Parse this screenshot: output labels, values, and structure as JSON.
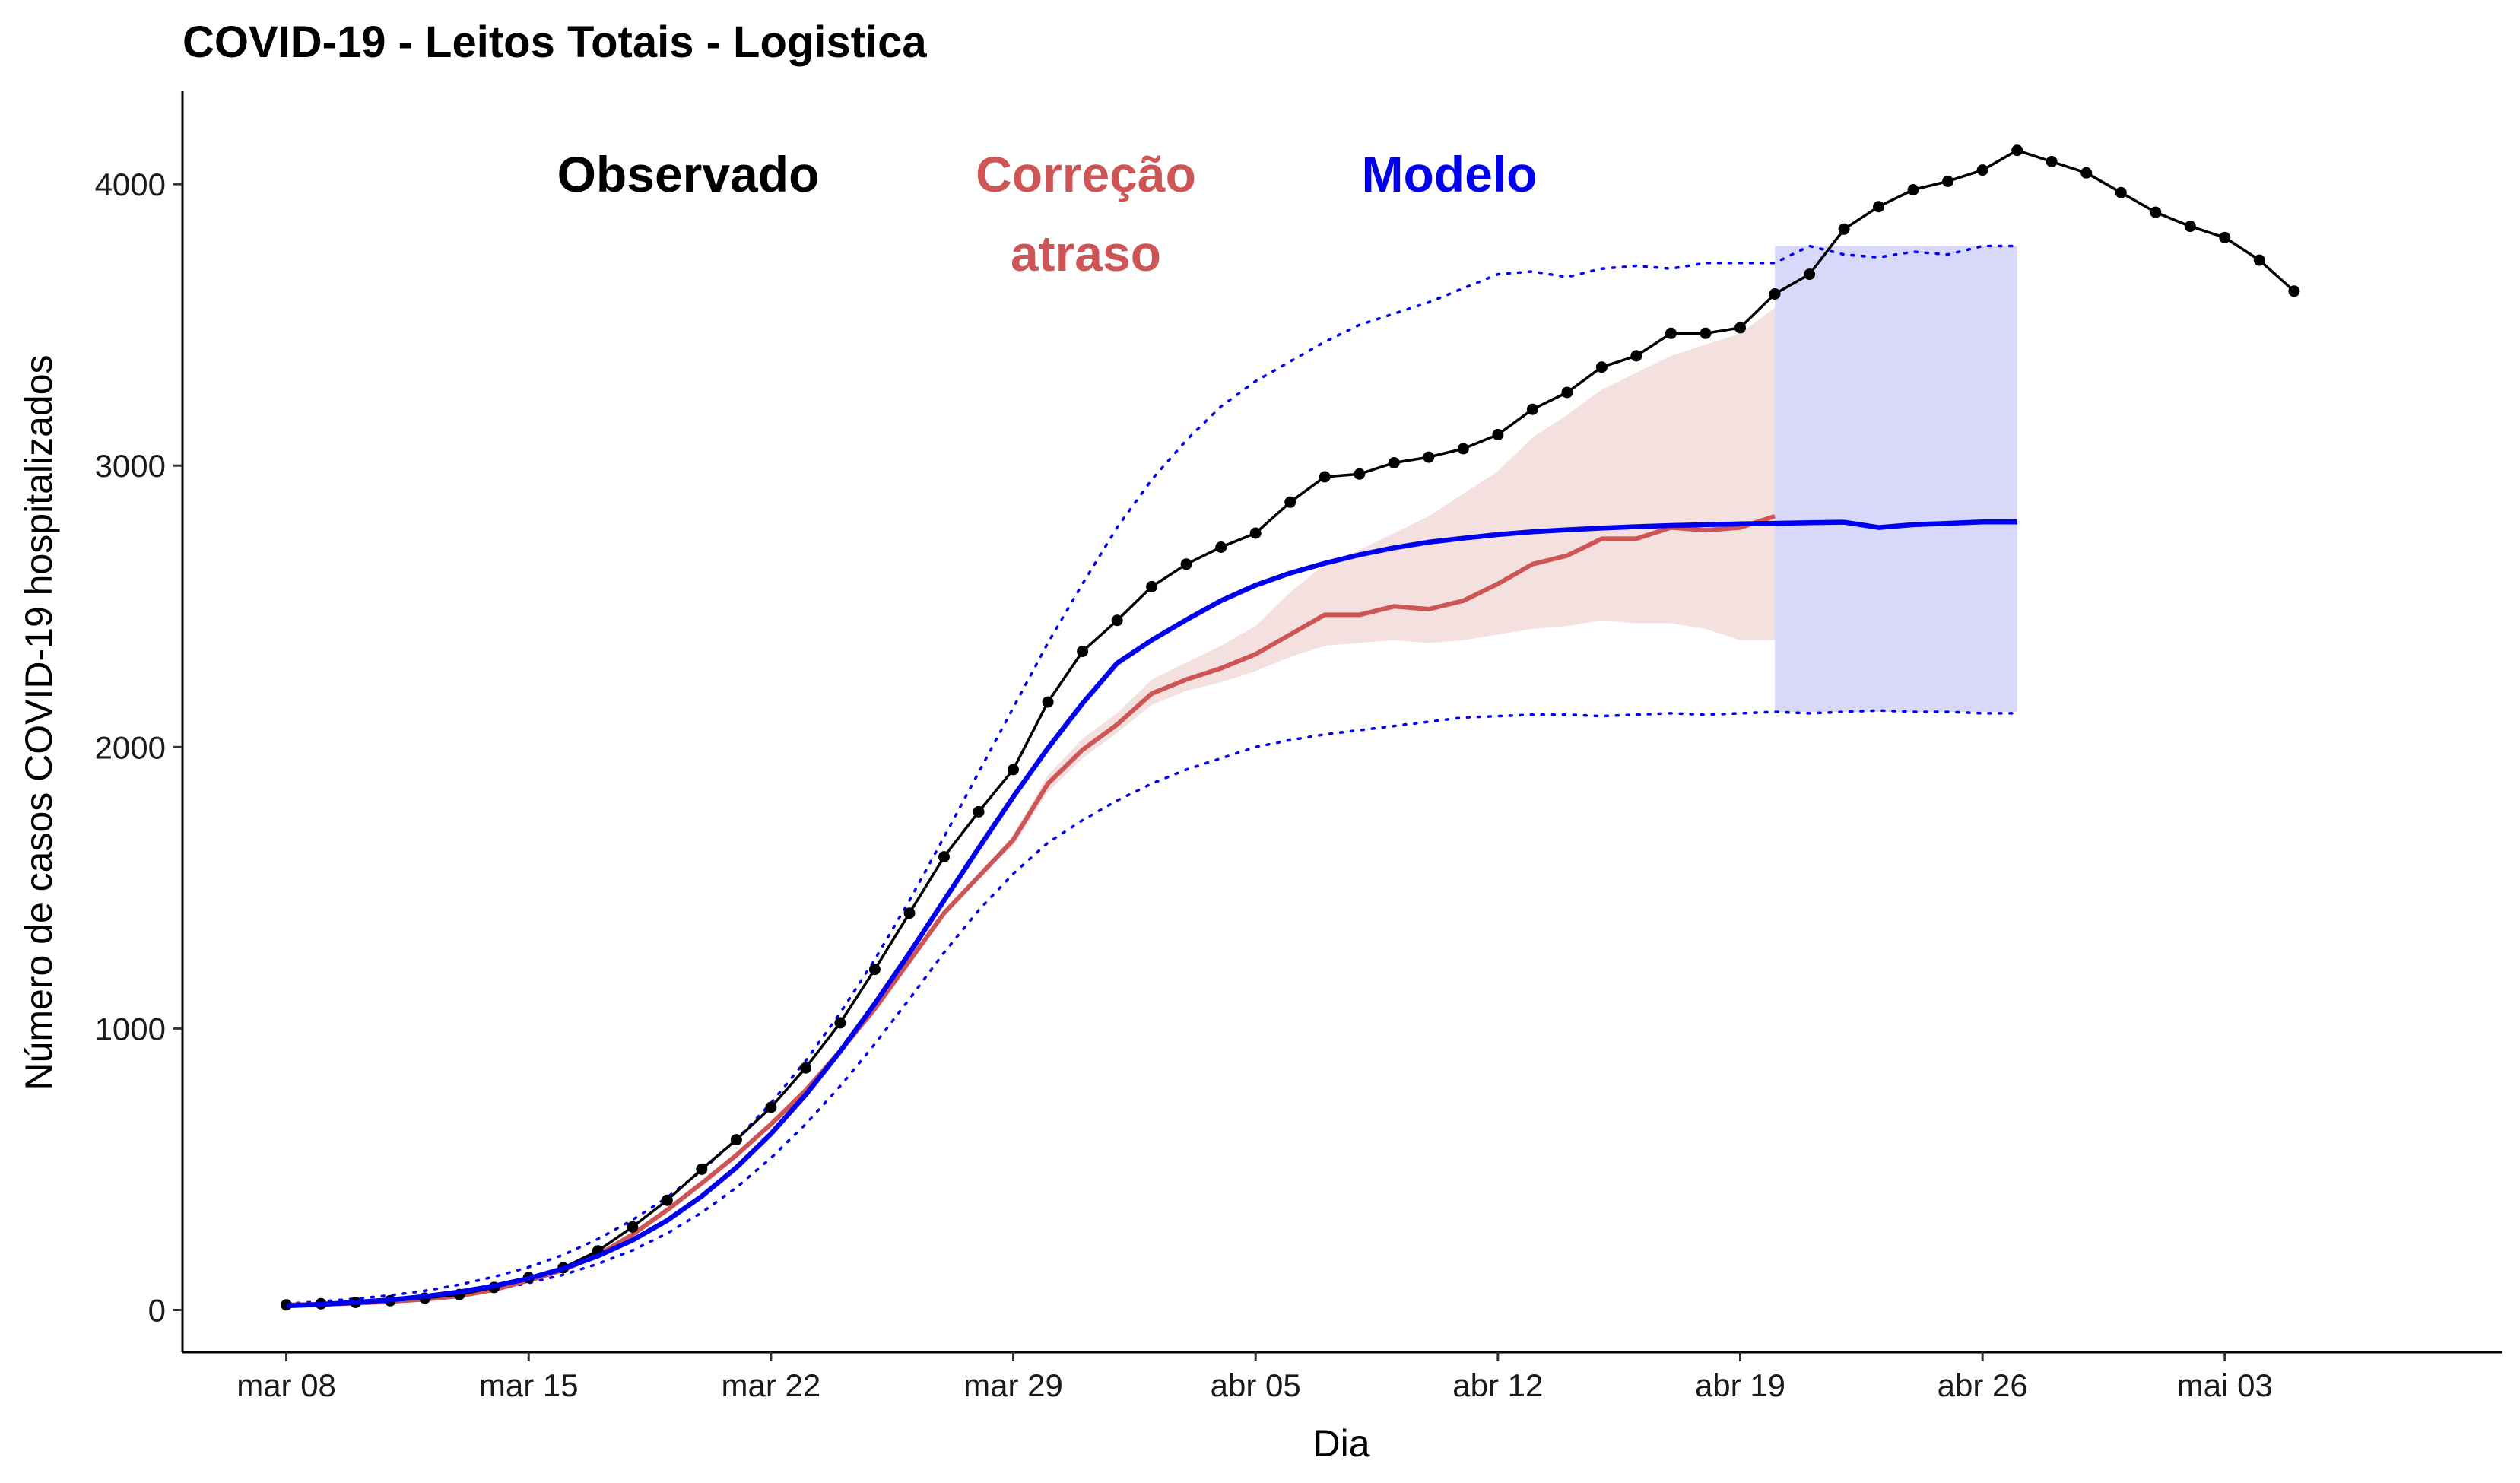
{
  "chart_data": {
    "type": "line",
    "title": "COVID-19 - Leitos Totais - Logistica",
    "xlabel": "Dia",
    "ylabel": "Número de casos COVID-19 hospitalizados",
    "x_start": "2020-03-08",
    "xlim": [
      "2020-03-05",
      "2020-05-11"
    ],
    "ylim": [
      -150,
      4330
    ],
    "x_ticks": [
      {
        "date": "2020-03-08",
        "label": "mar 08"
      },
      {
        "date": "2020-03-15",
        "label": "mar 15"
      },
      {
        "date": "2020-03-22",
        "label": "mar 22"
      },
      {
        "date": "2020-03-29",
        "label": "mar 29"
      },
      {
        "date": "2020-04-05",
        "label": "abr 05"
      },
      {
        "date": "2020-04-12",
        "label": "abr 12"
      },
      {
        "date": "2020-04-19",
        "label": "abr 19"
      },
      {
        "date": "2020-04-26",
        "label": "abr 26"
      },
      {
        "date": "2020-05-03",
        "label": "mai 03"
      }
    ],
    "y_ticks": [
      0,
      1000,
      2000,
      3000,
      4000
    ],
    "grid": false,
    "legend": [
      {
        "lines": [
          "Observado"
        ],
        "color": "#000000"
      },
      {
        "lines": [
          "Correção",
          "atraso"
        ],
        "color": "#cd5555"
      },
      {
        "lines": [
          "Modelo"
        ],
        "color": "#0000ee"
      }
    ],
    "series": [
      {
        "name": "Observado",
        "color": "#000000",
        "x_start": "2020-03-08",
        "values": [
          18,
          22,
          27,
          33,
          42,
          55,
          80,
          115,
          150,
          210,
          295,
          390,
          500,
          605,
          720,
          860,
          1020,
          1210,
          1410,
          1610,
          1770,
          1920,
          2160,
          2340,
          2450,
          2570,
          2650,
          2710,
          2760,
          2870,
          2960,
          2970,
          3010,
          3030,
          3060,
          3110,
          3200,
          3260,
          3350,
          3390,
          3470,
          3470,
          3490,
          3610,
          3680,
          3840,
          3920,
          3980,
          4010,
          4050,
          4120,
          4080,
          4040,
          3970,
          3900,
          3850,
          3810,
          3730,
          3620
        ]
      },
      {
        "name": "Correção atraso",
        "color": "#cd5555",
        "x_start": "2020-03-08",
        "values": [
          18,
          20,
          24,
          30,
          38,
          50,
          72,
          105,
          142,
          195,
          268,
          355,
          450,
          550,
          660,
          780,
          920,
          1070,
          1240,
          1410,
          1540,
          1670,
          1870,
          1990,
          2080,
          2190,
          2240,
          2280,
          2330,
          2400,
          2470,
          2470,
          2500,
          2490,
          2520,
          2580,
          2650,
          2680,
          2740,
          2740,
          2780,
          2770,
          2780,
          2820
        ],
        "band_lower": [
          18,
          20,
          24,
          30,
          38,
          50,
          72,
          105,
          142,
          195,
          268,
          355,
          450,
          550,
          660,
          780,
          920,
          1070,
          1240,
          1410,
          1540,
          1650,
          1840,
          1960,
          2050,
          2150,
          2200,
          2230,
          2270,
          2320,
          2360,
          2370,
          2380,
          2370,
          2380,
          2400,
          2420,
          2430,
          2450,
          2440,
          2440,
          2420,
          2380,
          2380
        ],
        "band_upper": [
          18,
          20,
          24,
          30,
          38,
          50,
          72,
          105,
          142,
          195,
          268,
          355,
          450,
          550,
          660,
          780,
          920,
          1070,
          1240,
          1410,
          1540,
          1690,
          1900,
          2030,
          2120,
          2240,
          2300,
          2360,
          2430,
          2550,
          2650,
          2700,
          2760,
          2820,
          2900,
          2980,
          3100,
          3180,
          3270,
          3330,
          3390,
          3430,
          3470,
          3560
        ]
      },
      {
        "name": "Modelo",
        "color": "#0000ee",
        "x_start": "2020-03-08",
        "values": [
          15,
          20,
          27,
          36,
          48,
          64,
          85,
          112,
          147,
          192,
          248,
          318,
          404,
          506,
          626,
          764,
          919,
          1088,
          1268,
          1455,
          1641,
          1823,
          1996,
          2155,
          2298,
          2380,
          2452,
          2520,
          2575,
          2618,
          2653,
          2683,
          2708,
          2728,
          2742,
          2755,
          2765,
          2772,
          2778,
          2783,
          2787,
          2790,
          2793,
          2795,
          2797,
          2799,
          2780,
          2790,
          2795,
          2800,
          2800
        ],
        "band_lower": [
          12,
          16,
          22,
          30,
          40,
          54,
          72,
          96,
          125,
          164,
          212,
          272,
          346,
          435,
          540,
          660,
          795,
          945,
          1105,
          1270,
          1420,
          1550,
          1660,
          1740,
          1810,
          1870,
          1920,
          1960,
          2000,
          2025,
          2045,
          2060,
          2075,
          2090,
          2105,
          2110,
          2115,
          2115,
          2110,
          2115,
          2120,
          2115,
          2120,
          2125,
          2120,
          2125,
          2130,
          2125,
          2125,
          2120,
          2120
        ],
        "band_upper": [
          22,
          30,
          40,
          52,
          68,
          90,
          118,
          152,
          196,
          252,
          320,
          400,
          495,
          605,
          735,
          885,
          1055,
          1245,
          1455,
          1680,
          1910,
          2140,
          2370,
          2580,
          2780,
          2950,
          3090,
          3210,
          3300,
          3370,
          3440,
          3500,
          3540,
          3580,
          3630,
          3680,
          3690,
          3670,
          3700,
          3710,
          3700,
          3720,
          3720,
          3720,
          3780,
          3750,
          3740,
          3760,
          3750,
          3780,
          3780
        ]
      }
    ],
    "forecast_band": {
      "x_start": "2020-04-20",
      "x_end": "2020-04-27",
      "lower": 2125,
      "upper": 3780,
      "color": "#d8d8fa"
    }
  }
}
